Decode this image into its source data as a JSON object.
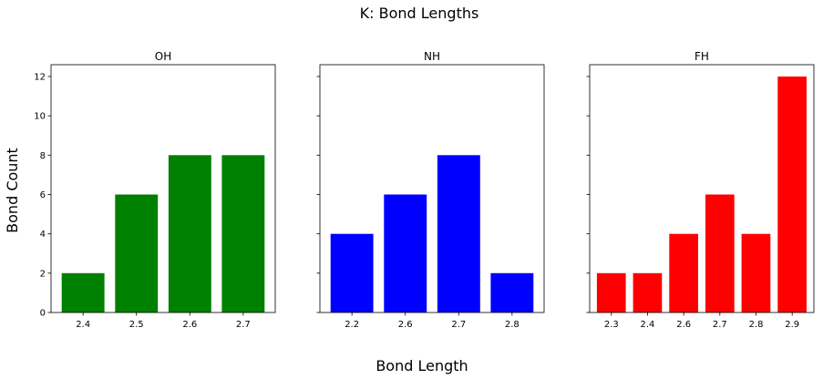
{
  "figure": {
    "title": "K: Bond Lengths",
    "xlabel": "Bond Length",
    "ylabel": "Bond Count"
  },
  "chart_data": [
    {
      "type": "bar",
      "title": "OH",
      "categories": [
        "2.4",
        "2.5",
        "2.6",
        "2.7"
      ],
      "values": [
        2,
        6,
        8,
        8
      ],
      "color": "#008000",
      "ylim": [
        0,
        12.6
      ],
      "yticks": [
        0,
        2,
        4,
        6,
        8,
        10,
        12
      ],
      "grid": false
    },
    {
      "type": "bar",
      "title": "NH",
      "categories": [
        "2.2",
        "2.6",
        "2.7",
        "2.8"
      ],
      "values": [
        4,
        6,
        8,
        2
      ],
      "color": "#0000ff",
      "ylim": [
        0,
        12.6
      ],
      "yticks": [
        0,
        2,
        4,
        6,
        8,
        10,
        12
      ],
      "grid": false
    },
    {
      "type": "bar",
      "title": "FH",
      "categories": [
        "2.3",
        "2.4",
        "2.6",
        "2.7",
        "2.8",
        "2.9"
      ],
      "values": [
        2,
        2,
        4,
        6,
        4,
        12
      ],
      "color": "#ff0000",
      "ylim": [
        0,
        12.6
      ],
      "yticks": [
        0,
        2,
        4,
        6,
        8,
        10,
        12
      ],
      "grid": false
    }
  ]
}
